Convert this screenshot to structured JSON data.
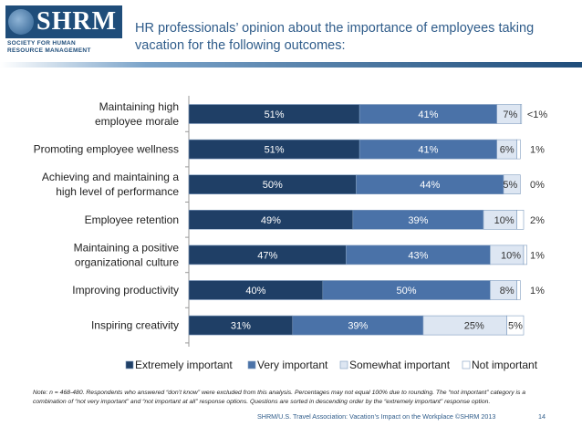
{
  "logo": {
    "word": "SHRM",
    "subtitle": "SOCIETY FOR HUMAN\nRESOURCE MANAGEMENT"
  },
  "title": "HR professionals’ opinion about the importance of employees taking vacation for the following outcomes:",
  "footer": {
    "note": "Note: n = 468-480. Respondents who answered “don’t know” were excluded from this analysis. Percentages may not equal 100% due to rounding. The “not important” category is a combination of “not very important” and “not important at all” response options. Questions are sorted in descending order by the “extremely important” response option.",
    "source": "SHRM/U.S. Travel Association: Vacation’s Impact on the Workplace ©SHRM 2013",
    "page": "14"
  },
  "colors": {
    "extremely": "#1f3f66",
    "very": "#4a72a8",
    "somewhat": "#dde6f2",
    "not": "#ffffff",
    "title": "#2f5c8a"
  },
  "chart_data": {
    "type": "bar",
    "orientation": "horizontal-stacked",
    "title": "",
    "xlim": [
      0,
      100
    ],
    "categories": [
      "Maintaining high employee morale",
      "Promoting employee wellness",
      "Achieving and maintaining a high level of performance",
      "Employee retention",
      "Maintaining a positive organizational culture",
      "Improving productivity",
      "Inspiring creativity"
    ],
    "category_lines": [
      [
        "Maintaining high",
        "employee morale"
      ],
      [
        "Promoting employee wellness"
      ],
      [
        "Achieving and maintaining a",
        "high level of performance"
      ],
      [
        "Employee retention"
      ],
      [
        "Maintaining a positive",
        "organizational culture"
      ],
      [
        "Improving productivity"
      ],
      [
        "Inspiring creativity"
      ]
    ],
    "series": [
      {
        "name": "Extremely important",
        "values": [
          51,
          51,
          50,
          49,
          47,
          40,
          31
        ],
        "labels": [
          "51%",
          "51%",
          "50%",
          "49%",
          "47%",
          "40%",
          "31%"
        ]
      },
      {
        "name": "Very important",
        "values": [
          41,
          41,
          44,
          39,
          43,
          50,
          39
        ],
        "labels": [
          "41%",
          "41%",
          "44%",
          "39%",
          "43%",
          "50%",
          "39%"
        ]
      },
      {
        "name": "Somewhat important",
        "values": [
          7,
          6,
          5,
          10,
          10,
          8,
          25
        ],
        "labels": [
          "7%",
          "6%",
          "5%",
          "10%",
          "10%",
          "8%",
          "25%"
        ]
      },
      {
        "name": "Not important",
        "values": [
          0.4,
          1,
          0,
          2,
          1,
          1,
          5
        ],
        "labels": [
          "<1%",
          "1%",
          "0%",
          "2%",
          "1%",
          "1%",
          "5%"
        ]
      }
    ],
    "legend_position": "bottom"
  }
}
